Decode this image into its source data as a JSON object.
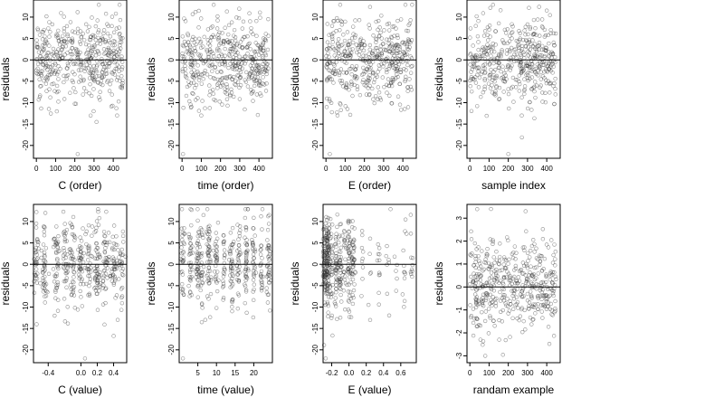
{
  "chart_data": [
    {
      "type": "scatter",
      "xlabel": "C (order)",
      "ylabel": "residuals",
      "xlim": [
        -15,
        470
      ],
      "ylim": [
        -23,
        14
      ],
      "xticks": [
        0,
        100,
        200,
        300,
        400
      ],
      "yticks": [
        10,
        5,
        0,
        -5,
        -10,
        -15,
        -20
      ],
      "hline": 0,
      "x_range": [
        0,
        450
      ],
      "y_mean": 0,
      "y_sd": 5,
      "n_points": 450,
      "notable_points": [
        {
          "x": 215,
          "y": -22
        },
        {
          "x": 420,
          "y": -13
        }
      ]
    },
    {
      "type": "scatter",
      "xlabel": "time (order)",
      "ylabel": "residuals",
      "xlim": [
        -15,
        470
      ],
      "ylim": [
        -23,
        14
      ],
      "xticks": [
        0,
        100,
        200,
        300,
        400
      ],
      "yticks": [
        10,
        5,
        0,
        -5,
        -10,
        -15,
        -20
      ],
      "hline": 0,
      "x_range": [
        0,
        450
      ],
      "y_mean": 0,
      "y_sd": 5,
      "n_points": 450,
      "notable_points": [
        {
          "x": 5,
          "y": -22
        },
        {
          "x": 100,
          "y": -13
        }
      ]
    },
    {
      "type": "scatter",
      "xlabel": "E (order)",
      "ylabel": "residuals",
      "xlim": [
        -15,
        470
      ],
      "ylim": [
        -23,
        14
      ],
      "xticks": [
        0,
        100,
        200,
        300,
        400
      ],
      "yticks": [
        10,
        5,
        0,
        -5,
        -10,
        -15,
        -20
      ],
      "hline": 0,
      "x_range": [
        0,
        450
      ],
      "y_mean": 0,
      "y_sd": 5,
      "n_points": 450,
      "notable_points": [
        {
          "x": 20,
          "y": -22
        },
        {
          "x": 60,
          "y": -13
        }
      ]
    },
    {
      "type": "scatter",
      "xlabel": "sample index",
      "ylabel": "residuals",
      "xlim": [
        -15,
        470
      ],
      "ylim": [
        -23,
        14
      ],
      "xticks": [
        0,
        100,
        200,
        300,
        400
      ],
      "yticks": [
        10,
        5,
        0,
        -5,
        -10,
        -15,
        -20
      ],
      "hline": 0,
      "x_range": [
        0,
        450
      ],
      "y_mean": 0,
      "y_sd": 5,
      "n_points": 450,
      "notable_points": [
        {
          "x": 200,
          "y": -22
        },
        {
          "x": 270,
          "y": -13
        }
      ]
    },
    {
      "type": "scatter",
      "xlabel": "C (value)",
      "ylabel": "residuals",
      "xlim": [
        -0.58,
        0.56
      ],
      "ylim": [
        -23,
        14
      ],
      "xticks": [
        -0.4,
        0.0,
        0.2,
        0.4
      ],
      "xtick_labels": [
        "-0.4",
        "0.0",
        "0.2",
        "0.4"
      ],
      "yticks": [
        10,
        5,
        0,
        -5,
        -10,
        -15,
        -20
      ],
      "hline": 0,
      "x_clusters": [
        -0.55,
        -0.45,
        -0.3,
        -0.18,
        -0.1,
        0.0,
        0.1,
        0.2,
        0.3,
        0.4,
        0.5
      ],
      "cluster_spread": 0.02,
      "y_mean": 0,
      "y_sd": 5,
      "n_points": 450,
      "notable_points": [
        {
          "x": 0.05,
          "y": -22
        },
        {
          "x": 0.45,
          "y": -13
        }
      ]
    },
    {
      "type": "scatter",
      "xlabel": "time (value)",
      "ylabel": "residuals",
      "xlim": [
        0,
        25
      ],
      "ylim": [
        -23,
        14
      ],
      "xticks": [
        5,
        10,
        15,
        20
      ],
      "yticks": [
        10,
        5,
        0,
        -5,
        -10,
        -15,
        -20
      ],
      "hline": 0,
      "x_clusters": [
        1,
        3,
        5,
        6,
        8,
        10,
        12,
        14,
        16,
        18,
        20,
        22,
        24
      ],
      "cluster_spread": 0.25,
      "y_mean": 0,
      "y_sd": 5,
      "n_points": 450,
      "notable_points": [
        {
          "x": 1,
          "y": -22
        },
        {
          "x": 7,
          "y": -13
        }
      ]
    },
    {
      "type": "scatter",
      "xlabel": "E (value)",
      "ylabel": "residuals",
      "xlim": [
        -0.3,
        0.78
      ],
      "ylim": [
        -23,
        14
      ],
      "xticks": [
        -0.2,
        0.0,
        0.2,
        0.4,
        0.6
      ],
      "xtick_labels": [
        "-0.2",
        "0.0",
        "0.2",
        "0.4",
        "0.6"
      ],
      "yticks": [
        10,
        5,
        0,
        -5,
        -10,
        -15,
        -20
      ],
      "hline": 0,
      "x_clusters": [
        -0.28,
        -0.26,
        -0.24,
        -0.2,
        -0.15,
        -0.1,
        -0.05,
        0.0,
        0.05,
        0.15,
        0.25,
        0.35,
        0.45,
        0.55,
        0.65,
        0.72
      ],
      "cluster_weights": [
        6,
        6,
        5,
        4,
        4,
        4,
        3,
        4,
        3,
        1,
        1,
        1,
        1,
        1,
        1,
        1
      ],
      "cluster_spread": 0.012,
      "y_mean": 0,
      "y_sd": 5,
      "n_points": 450,
      "notable_points": [
        {
          "x": -0.27,
          "y": -22
        }
      ]
    },
    {
      "type": "scatter",
      "xlabel": "randam example",
      "ylabel": "residuals",
      "xlim": [
        -15,
        470
      ],
      "ylim": [
        -3.3,
        3.6
      ],
      "xticks": [
        0,
        100,
        200,
        300,
        400
      ],
      "yticks": [
        3,
        2,
        1,
        0,
        -1,
        -2,
        -3
      ],
      "hline": 0,
      "x_range": [
        0,
        450
      ],
      "y_mean": 0,
      "y_sd": 1,
      "n_points": 450,
      "notable_points": [
        {
          "x": 110,
          "y": 3.4
        },
        {
          "x": 290,
          "y": 3.3
        },
        {
          "x": 80,
          "y": -3.0
        }
      ]
    }
  ]
}
